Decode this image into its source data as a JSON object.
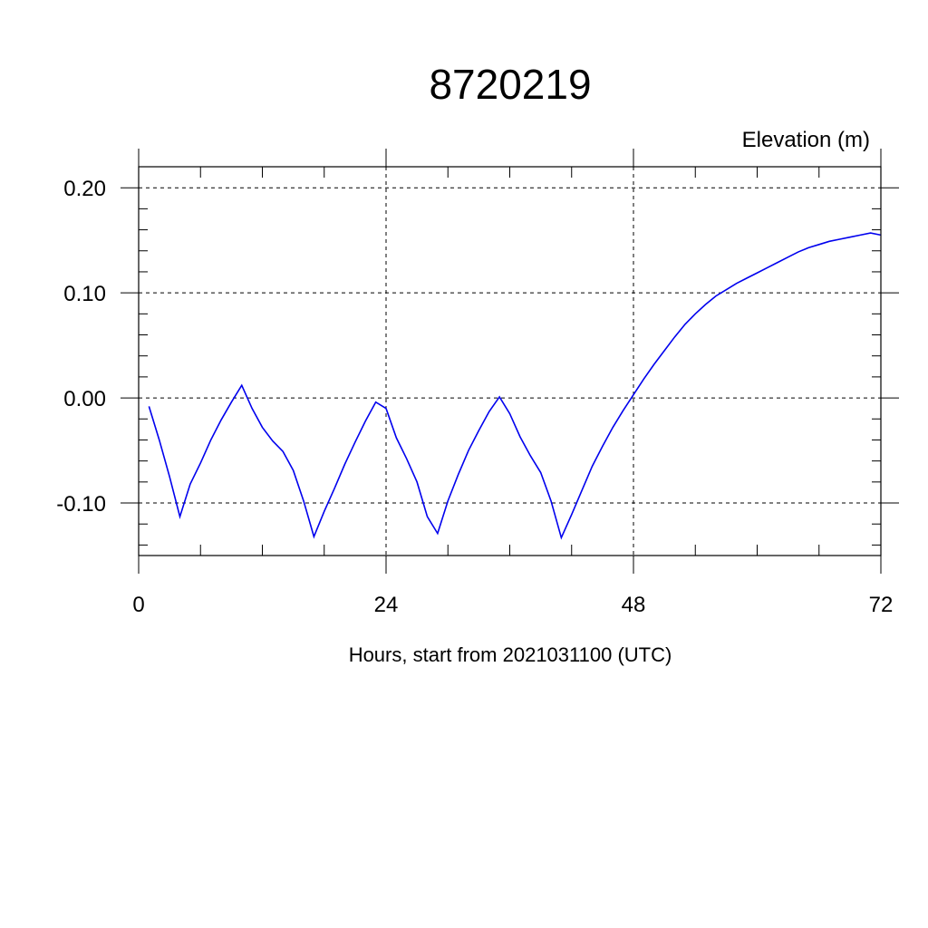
{
  "chart_data": {
    "type": "line",
    "title": "8720219",
    "ylabel": "Elevation (m)",
    "xlabel": "Hours, start from 2021031100 (UTC)",
    "xlim": [
      0,
      72
    ],
    "ylim": [
      -0.15,
      0.22
    ],
    "x_ticks": [
      {
        "value": 0,
        "label": "0"
      },
      {
        "value": 24,
        "label": "24"
      },
      {
        "value": 48,
        "label": "48"
      },
      {
        "value": 72,
        "label": "72"
      }
    ],
    "y_ticks": [
      {
        "value": 0.2,
        "label": "0.20"
      },
      {
        "value": 0.1,
        "label": "0.10"
      },
      {
        "value": 0.0,
        "label": "0.00"
      },
      {
        "value": -0.1,
        "label": "-0.10"
      }
    ],
    "grid": true,
    "series": [
      {
        "color": "#0000ee",
        "x": [
          1,
          2,
          3,
          4,
          5,
          6,
          7,
          8,
          9,
          10,
          11,
          12,
          13,
          14,
          15,
          16,
          17,
          18,
          19,
          20,
          21,
          22,
          23,
          24,
          25,
          26,
          27,
          28,
          29,
          30,
          31,
          32,
          33,
          34,
          35,
          36,
          37,
          38,
          39,
          40,
          41,
          42,
          43,
          44,
          45,
          46,
          47,
          48,
          49,
          50,
          51,
          52,
          53,
          54,
          55,
          56,
          57,
          58,
          59,
          60,
          61,
          62,
          63,
          64,
          65,
          66,
          67,
          68,
          69,
          70,
          71,
          72
        ],
        "y": [
          -0.008,
          -0.04,
          -0.075,
          -0.113,
          -0.082,
          -0.062,
          -0.04,
          -0.021,
          -0.004,
          0.012,
          -0.01,
          -0.028,
          -0.041,
          -0.051,
          -0.069,
          -0.098,
          -0.132,
          -0.108,
          -0.086,
          -0.063,
          -0.042,
          -0.022,
          -0.004,
          -0.01,
          -0.038,
          -0.058,
          -0.08,
          -0.113,
          -0.129,
          -0.098,
          -0.073,
          -0.05,
          -0.031,
          -0.013,
          0.001,
          -0.015,
          -0.037,
          -0.055,
          -0.071,
          -0.098,
          -0.133,
          -0.111,
          -0.088,
          -0.065,
          -0.046,
          -0.028,
          -0.012,
          0.003,
          0.018,
          0.032,
          0.045,
          0.058,
          0.07,
          0.08,
          0.089,
          0.097,
          0.103,
          0.109,
          0.114,
          0.119,
          0.124,
          0.129,
          0.134,
          0.139,
          0.143,
          0.146,
          0.149,
          0.151,
          0.153,
          0.155,
          0.157,
          0.155
        ]
      }
    ]
  }
}
